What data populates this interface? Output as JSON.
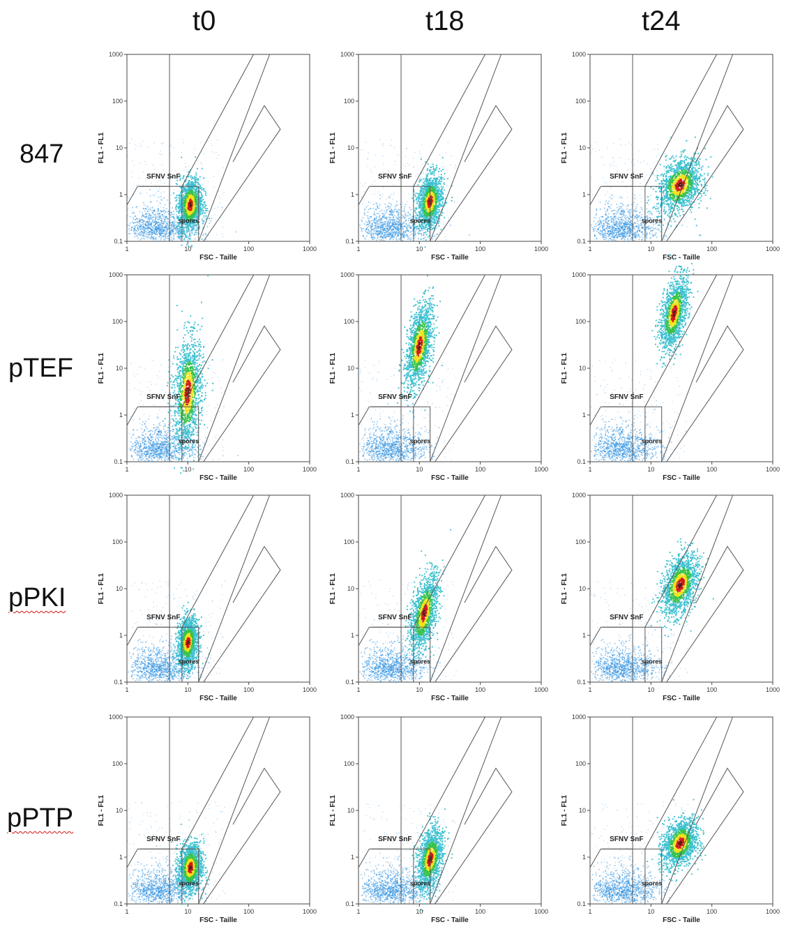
{
  "figure": {
    "columns": [
      "t0",
      "t18",
      "t24"
    ],
    "rows": [
      "847",
      "pTEF",
      "pPKI",
      "pPTP"
    ],
    "ylabel": "FL1 - FL1",
    "xlabel": "FSC - Taille",
    "gate_labels": {
      "upper": "SFNV SnF",
      "lower": "spores"
    },
    "x_ticks": [
      "1",
      "10",
      "100",
      "1000"
    ],
    "y_ticks": [
      "0.1",
      "1",
      "10",
      "100",
      "1000"
    ],
    "colors": {
      "low_density": "#2b8fe0",
      "mid_density": "#f2e21a",
      "high_density": "#d21a1a",
      "core": "#5a1a1a"
    }
  },
  "chart_data": {
    "type": "scatter",
    "x_scale": "log",
    "y_scale": "log",
    "xlim": [
      1,
      1000
    ],
    "ylim": [
      0.1,
      1000
    ],
    "xlabel": "FSC - Taille",
    "ylabel": "FL1 - FL1",
    "panels": [
      {
        "row": "847",
        "column": "t0",
        "density_center": [
          11,
          0.6
        ],
        "spread": [
          0.07,
          0.22
        ],
        "tilt": 0.2
      },
      {
        "row": "847",
        "column": "t18",
        "density_center": [
          15,
          0.7
        ],
        "spread": [
          0.07,
          0.22
        ],
        "tilt": 0.4
      },
      {
        "row": "847",
        "column": "t24",
        "density_center": [
          30,
          1.6
        ],
        "spread": [
          0.12,
          0.22
        ],
        "tilt": 0.8
      },
      {
        "row": "pTEF",
        "column": "t0",
        "density_center": [
          10,
          3
        ],
        "spread": [
          0.08,
          0.45
        ],
        "tilt": 0.2
      },
      {
        "row": "pTEF",
        "column": "t18",
        "density_center": [
          10,
          30
        ],
        "spread": [
          0.07,
          0.35
        ],
        "tilt": 0.5
      },
      {
        "row": "pTEF",
        "column": "t24",
        "density_center": [
          24,
          150
        ],
        "spread": [
          0.07,
          0.3
        ],
        "tilt": 0.6
      },
      {
        "row": "pPKI",
        "column": "t0",
        "density_center": [
          10,
          0.7
        ],
        "spread": [
          0.06,
          0.2
        ],
        "tilt": 0.2
      },
      {
        "row": "pPKI",
        "column": "t18",
        "density_center": [
          12,
          3
        ],
        "spread": [
          0.07,
          0.32
        ],
        "tilt": 0.6
      },
      {
        "row": "pPKI",
        "column": "t24",
        "density_center": [
          30,
          12
        ],
        "spread": [
          0.1,
          0.25
        ],
        "tilt": 0.8
      },
      {
        "row": "pPTP",
        "column": "t0",
        "density_center": [
          11,
          0.6
        ],
        "spread": [
          0.07,
          0.2
        ],
        "tilt": 0.2
      },
      {
        "row": "pPTP",
        "column": "t18",
        "density_center": [
          15,
          0.9
        ],
        "spread": [
          0.07,
          0.25
        ],
        "tilt": 0.5
      },
      {
        "row": "pPTP",
        "column": "t24",
        "density_center": [
          30,
          2
        ],
        "spread": [
          0.1,
          0.2
        ],
        "tilt": 0.8
      }
    ]
  }
}
